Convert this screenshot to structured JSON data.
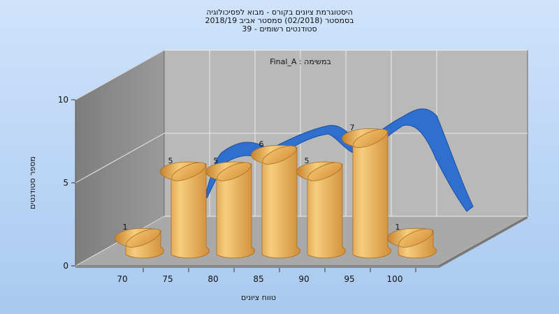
{
  "chart_data": {
    "type": "bar",
    "title_lines": [
      "היסטוגרמת ציונים בקורס - מבוא לפסיכולוגיה",
      "בסמסטר  (02/2018)  סמסטר אביב 2018/19",
      "סטודנטים רשומים - 39"
    ],
    "annotation": "במשימה : Final_A",
    "xlabel": "טווח ציונים",
    "ylabel": "מספר סטודנטים",
    "categories": [
      "70",
      "75",
      "80",
      "85",
      "90",
      "95",
      "100"
    ],
    "values": [
      1,
      5,
      5,
      6,
      5,
      7,
      1
    ],
    "data_labels": [
      "1",
      "5",
      "5",
      "6",
      "5",
      "7",
      "1"
    ],
    "y_ticks": [
      "0",
      "5",
      "10"
    ],
    "ylim": [
      0,
      10
    ],
    "grid": true,
    "bar_color": "#e8a94a",
    "curve_color": "#2f6fd0",
    "background_color": "#bcd6f5"
  }
}
